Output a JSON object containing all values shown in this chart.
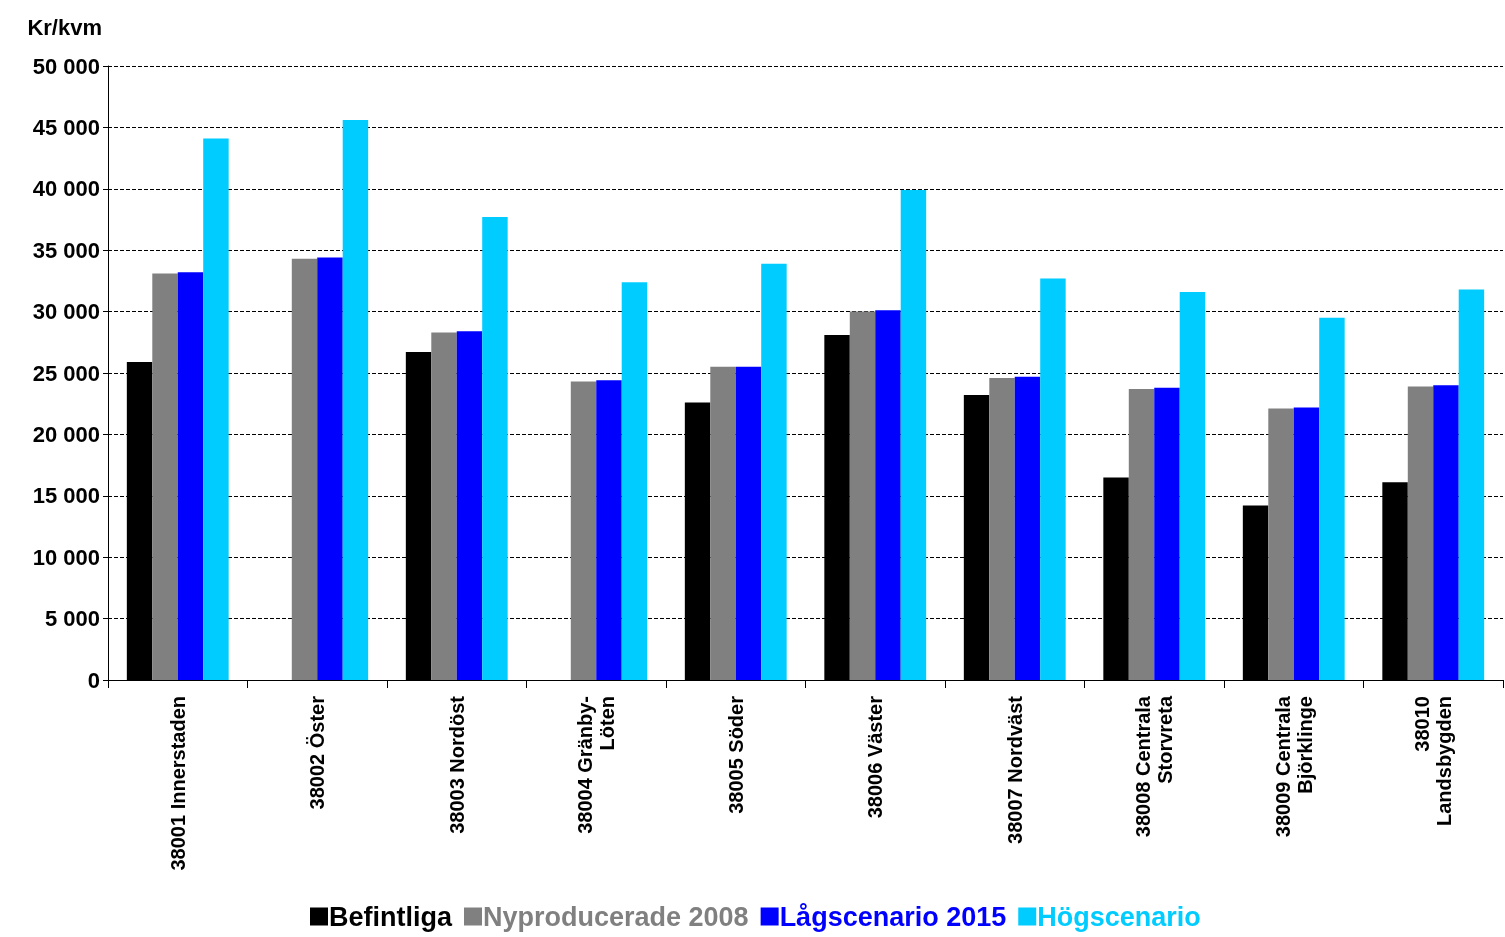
{
  "chart_data": {
    "type": "bar",
    "ylabel": "Kr/kvm",
    "categories": [
      "38001 Innerstaden",
      "38002 Öster",
      "38003 Nordöst",
      "38004 Gränby-\nLöten",
      "38005 Söder",
      "38006 Väster",
      "38007 Nordväst",
      "38008 Centrala\nStorvreta",
      "38009 Centrala\nBjörklinge",
      "38010\nLandsbygden"
    ],
    "series": [
      {
        "name": "Befintliga",
        "color": "#000000",
        "values": [
          25900,
          null,
          26700,
          null,
          22600,
          28100,
          23200,
          16500,
          14200,
          16100
        ]
      },
      {
        "name": "Nyproducerade 2008",
        "color": "#808080",
        "values": [
          33100,
          34300,
          28300,
          24300,
          25500,
          30000,
          24600,
          23700,
          22100,
          23900
        ]
      },
      {
        "name": "Lågscenario 2015",
        "color": "#0000ff",
        "values": [
          33200,
          34400,
          28400,
          24400,
          25500,
          30100,
          24700,
          23800,
          22200,
          24000
        ]
      },
      {
        "name": "Högscenario",
        "color": "#00ccff",
        "values": [
          44100,
          45600,
          37700,
          32400,
          33900,
          39900,
          32700,
          31600,
          29500,
          31800
        ]
      }
    ],
    "ylim": [
      0,
      50000
    ],
    "yticks": [
      0,
      {
        "value": 5000,
        "label": "5 000"
      },
      {
        "value": 10000,
        "label": "10 000"
      },
      {
        "value": 15000,
        "label": "15 000"
      },
      {
        "value": 20000,
        "label": "20 000"
      },
      {
        "value": 25000,
        "label": "25 000"
      },
      {
        "value": 30000,
        "label": "30 000"
      },
      {
        "value": 35000,
        "label": "35 000"
      },
      {
        "value": 40000,
        "label": "40 000"
      },
      {
        "value": 45000,
        "label": "45 000"
      },
      {
        "value": 50000,
        "label": "50 000"
      }
    ],
    "grid": "y",
    "legend": "bottom"
  }
}
